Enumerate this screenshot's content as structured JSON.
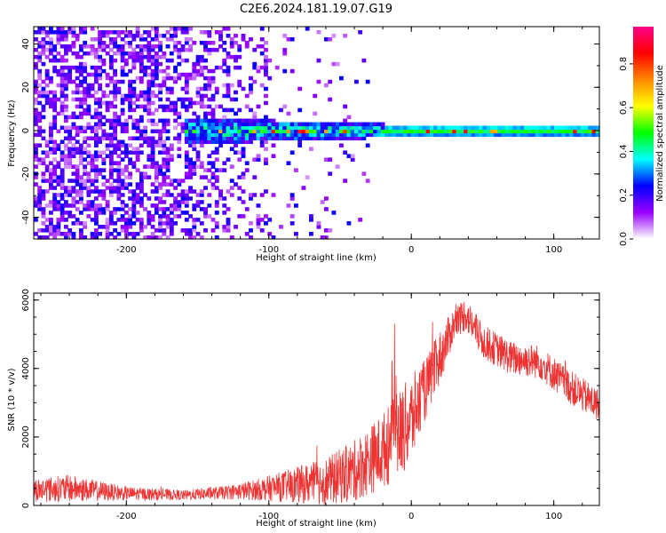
{
  "title": "C2E6.2024.181.19.07.G19",
  "chart_data": [
    {
      "type": "heatmap",
      "xlabel": "Height of straight line (km)",
      "ylabel": "Frequency (Hz)",
      "xlim": [
        -265,
        132
      ],
      "ylim": [
        -50,
        48
      ],
      "xticks": [
        "-200",
        "-100",
        "0",
        "100"
      ],
      "yticks": [
        "-40",
        "-20",
        "0",
        "20",
        "40"
      ],
      "grid": false,
      "colorbar": {
        "label": "Normalized spectral amplitude",
        "range": [
          0,
          0.97
        ],
        "ticks": [
          "0.0",
          "0.2",
          "0.4",
          "0.6",
          "0.8"
        ],
        "colormap": [
          "#ffffff",
          "#9900ff",
          "#0000ff",
          "#00ffff",
          "#00ff00",
          "#ffff00",
          "#ff8800",
          "#ff0000",
          "#ff0088"
        ]
      },
      "description_values": {
        "noise_region_km": [
          -265,
          -100
        ],
        "signal_line_freq_hz": 0,
        "signal_start_km": -160
      }
    },
    {
      "type": "line",
      "xlabel": "Height of straight line (km)",
      "ylabel": "SNR (10 * v/v)",
      "xlim": [
        -265,
        132
      ],
      "ylim": [
        0,
        6200
      ],
      "xticks": [
        "-200",
        "-100",
        "0",
        "100"
      ],
      "yticks": [
        "0",
        "2000",
        "4000",
        "6000"
      ],
      "grid": false,
      "color": "#ee3333",
      "envelope": {
        "x": [
          -265,
          -240,
          -200,
          -160,
          -130,
          -110,
          -90,
          -60,
          -40,
          -20,
          -10,
          0,
          10,
          20,
          30,
          38,
          50,
          70,
          90,
          110,
          132
        ],
        "mean": [
          450,
          500,
          350,
          300,
          380,
          450,
          550,
          700,
          1000,
          1600,
          2000,
          2500,
          3400,
          4300,
          5300,
          5600,
          4800,
          4300,
          4200,
          3500,
          2900
        ],
        "spread": [
          350,
          400,
          200,
          150,
          200,
          300,
          450,
          700,
          900,
          1100,
          1300,
          1300,
          900,
          800,
          500,
          500,
          500,
          500,
          500,
          500,
          500
        ]
      }
    }
  ]
}
